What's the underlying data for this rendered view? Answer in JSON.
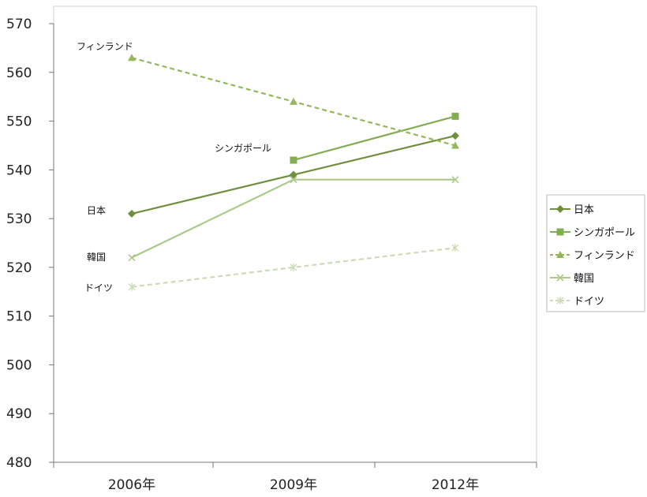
{
  "chart_data": {
    "type": "line",
    "categories": [
      "2006年",
      "2009年",
      "2012年"
    ],
    "ylim": [
      480,
      570
    ],
    "yticks": [
      480,
      490,
      500,
      510,
      520,
      530,
      540,
      550,
      560,
      570
    ],
    "series": [
      {
        "name": "日本",
        "values": [
          531,
          539,
          547
        ],
        "color": "#6f8f3f",
        "dash": "solid",
        "marker": "diamond"
      },
      {
        "name": "シンガポール",
        "values": [
          null,
          542,
          551
        ],
        "color": "#82ad52",
        "dash": "solid",
        "marker": "square"
      },
      {
        "name": "フィンランド",
        "values": [
          563,
          554,
          545
        ],
        "color": "#93b85c",
        "dash": "dashed",
        "marker": "triangle"
      },
      {
        "name": "韓国",
        "values": [
          522,
          538,
          538
        ],
        "color": "#adc98a",
        "dash": "solid",
        "marker": "x"
      },
      {
        "name": "ドイツ",
        "values": [
          516,
          520,
          524
        ],
        "color": "#cddcb7",
        "dash": "dashed",
        "marker": "star"
      }
    ],
    "annotations": [
      {
        "text": "フィンランド",
        "series": "フィンランド"
      },
      {
        "text": "シンガポール",
        "series": "シンガポール"
      },
      {
        "text": "日本",
        "series": "日本"
      },
      {
        "text": "韓国",
        "series": "韓国"
      },
      {
        "text": "ドイツ",
        "series": "ドイツ"
      }
    ],
    "legend": "right",
    "grid": false
  }
}
